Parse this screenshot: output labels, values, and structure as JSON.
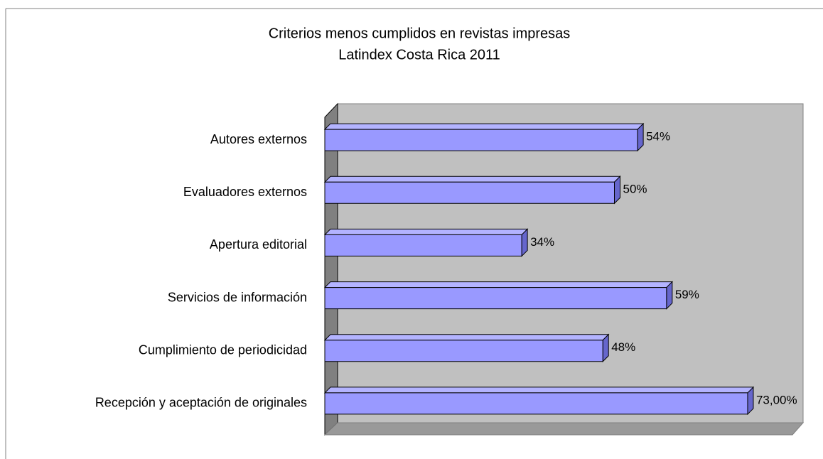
{
  "chart_data": {
    "type": "bar3d",
    "title": [
      "Criterios menos cumplidos en revistas impresas",
      "Latindex Costa Rica 2011"
    ],
    "categories": [
      "Autores externos",
      "Evaluadores externos",
      "Apertura editorial",
      "Servicios de información",
      "Cumplimiento de periodicidad",
      "Recepción y aceptación de originales"
    ],
    "values": [
      54,
      50,
      34,
      59,
      48,
      73
    ],
    "value_labels": [
      "54%",
      "50%",
      "34%",
      "59%",
      "48%",
      "73,00%"
    ],
    "color": "#9999ff",
    "xlim": [
      0,
      80
    ]
  }
}
